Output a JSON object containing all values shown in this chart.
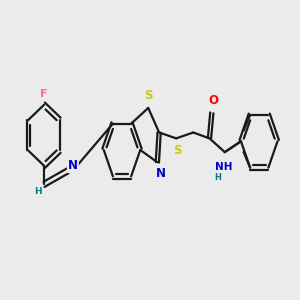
{
  "bg_color": "#ebebeb",
  "bond_color": "#1a1a1a",
  "line_width": 1.6,
  "font_size": 8.5,
  "atom_colors": {
    "F": "#ff69b4",
    "N": "#0000cc",
    "S": "#cccc00",
    "O": "#ff0000",
    "H": "#008080",
    "C": "#1a1a1a"
  },
  "figsize": [
    3.0,
    3.0
  ],
  "dpi": 100,
  "xlim": [
    0,
    10
  ],
  "ylim": [
    2,
    8
  ]
}
